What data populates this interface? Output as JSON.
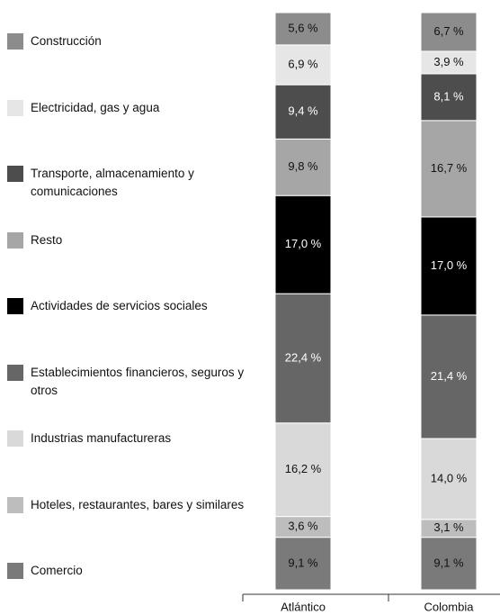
{
  "chart_data": {
    "type": "stacked-bar",
    "categories": [
      "Atlántico",
      "Colombia"
    ],
    "ylim": [
      0,
      100
    ],
    "series": [
      {
        "name": "Comercio",
        "color": "#7a7a7a",
        "values": [
          9.1,
          9.1
        ],
        "value_labels": [
          "9,1 %",
          "9,1 %"
        ]
      },
      {
        "name": "Hoteles, restaurantes, bares y similares",
        "color": "#bdbdbd",
        "values": [
          3.6,
          3.1
        ],
        "value_labels": [
          "3,6 %",
          "3,1 %"
        ]
      },
      {
        "name": "Industrias manufactureras",
        "color": "#d9d9d9",
        "values": [
          16.2,
          14.0
        ],
        "value_labels": [
          "16,2 %",
          "14,0 %"
        ]
      },
      {
        "name": "Establecimientos financieros, seguros y otros",
        "color": "#666666",
        "values": [
          22.4,
          21.4
        ],
        "value_labels": [
          "22,4 %",
          "21,4 %"
        ]
      },
      {
        "name": "Actividades de servicios sociales",
        "color": "#000000",
        "values": [
          17.0,
          17.0
        ],
        "value_labels": [
          "17,0 %",
          "17,0 %"
        ]
      },
      {
        "name": "Resto",
        "color": "#a6a6a6",
        "values": [
          9.8,
          16.7
        ],
        "value_labels": [
          "9,8 %",
          "16,7 %"
        ]
      },
      {
        "name": "Transporte, almacenamiento y comunicaciones",
        "color": "#4d4d4d",
        "values": [
          9.4,
          8.1
        ],
        "value_labels": [
          "9,4 %",
          "8,1 %"
        ]
      },
      {
        "name": "Electricidad, gas y agua",
        "color": "#e6e6e6",
        "values": [
          6.9,
          3.9
        ],
        "value_labels": [
          "6,9 %",
          "3,9 %"
        ]
      },
      {
        "name": "Construcción",
        "color": "#8c8c8c",
        "values": [
          5.6,
          6.7
        ],
        "value_labels": [
          "5,6 %",
          "6,7 %"
        ]
      }
    ]
  }
}
